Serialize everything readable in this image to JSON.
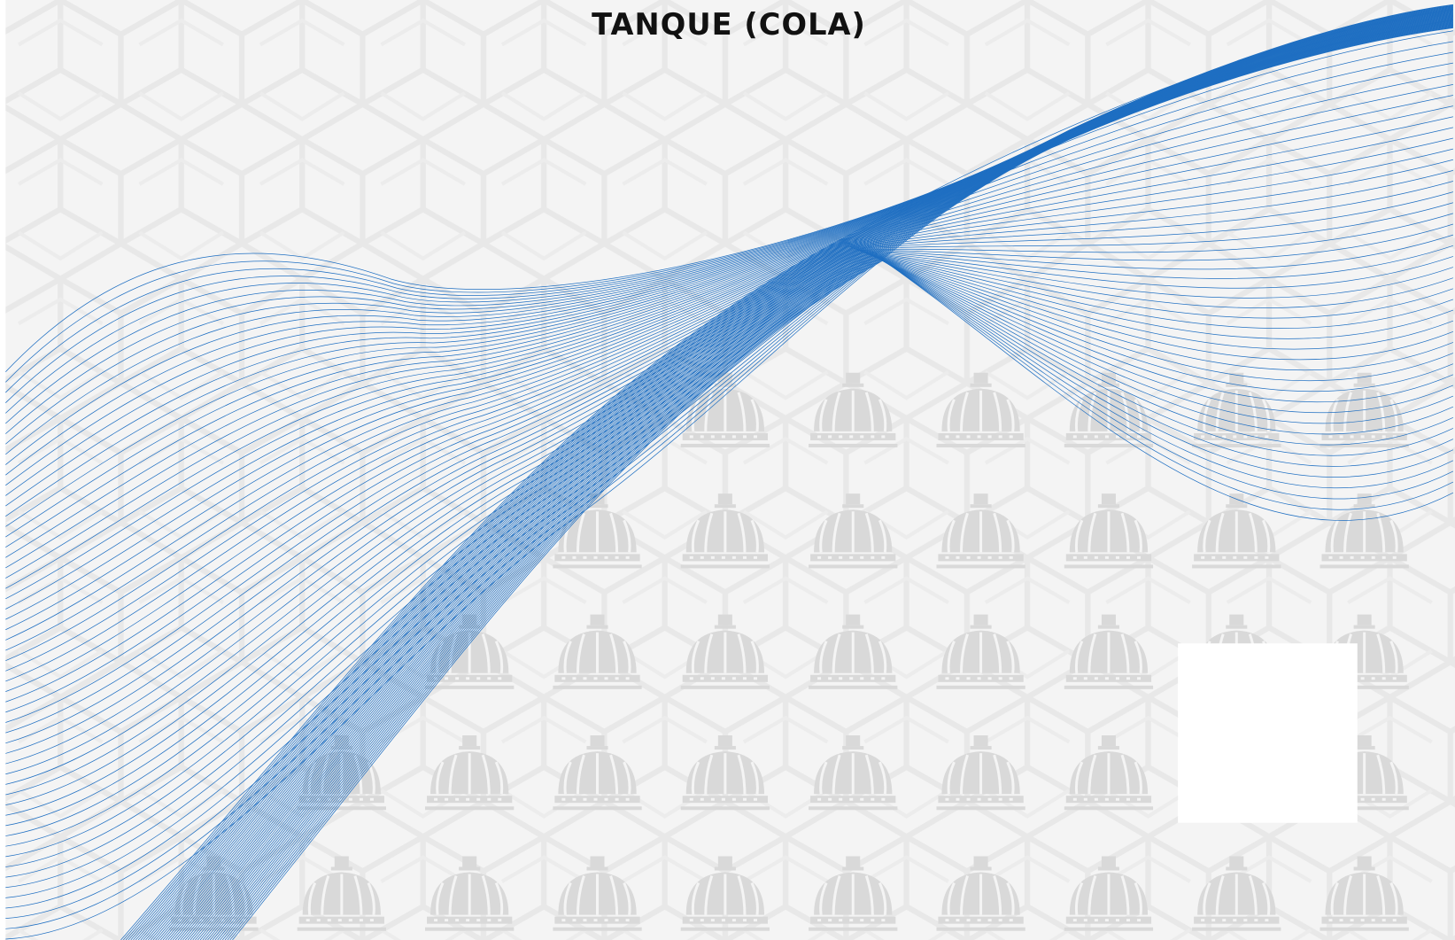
{
  "header": {
    "title": "TANQUE (COLA)"
  }
}
